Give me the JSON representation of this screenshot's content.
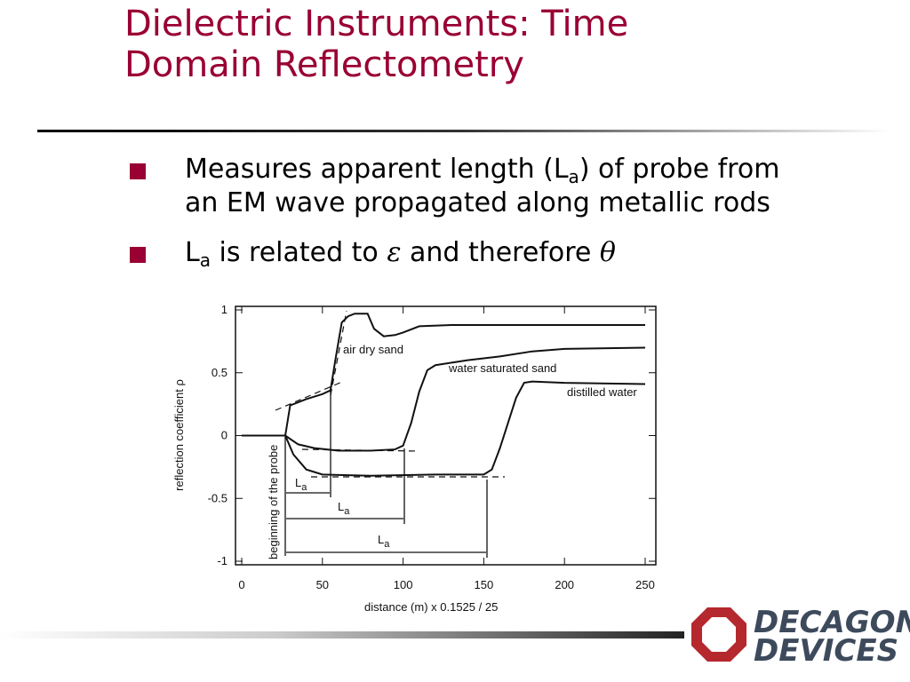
{
  "slide": {
    "title_lines": [
      "Dielectric Instruments: Time",
      "Domain Reflectometry"
    ],
    "bullets": [
      {
        "lines": [
          [
            "Measures apparent length (L",
            "a",
            ") of probe from"
          ],
          [
            "an EM wave propagated along metallic rods"
          ]
        ]
      },
      {
        "lines": [
          [
            "L",
            "a",
            " is related to ",
            "ε",
            " and therefore ",
            "θ"
          ]
        ]
      }
    ],
    "logo": [
      "DECAGON",
      "DEVICES"
    ]
  },
  "chart_data": {
    "type": "line",
    "xlabel": "distance (m)   x 0.1525 / 25",
    "ylabel": "reflection coefficient ρ",
    "xlim": [
      0,
      250
    ],
    "ylim": [
      -1,
      1
    ],
    "xticks": [
      0,
      50,
      100,
      150,
      200,
      250
    ],
    "yticks": [
      1,
      0.5,
      0,
      -0.5,
      -1
    ],
    "grid": false,
    "annotations": [
      "air dry sand",
      "water saturated sand",
      "distilled water",
      "beginning of the probe",
      "L",
      "a"
    ],
    "series": [
      {
        "name": "air dry sand",
        "color": "#111111",
        "x": [
          0,
          27,
          30,
          40,
          50,
          55,
          58,
          62,
          66,
          70,
          78,
          82,
          88,
          95,
          100,
          110,
          130,
          160,
          200,
          250
        ],
        "values": [
          0,
          0,
          0.24,
          0.29,
          0.33,
          0.36,
          0.6,
          0.9,
          0.95,
          0.97,
          0.97,
          0.85,
          0.79,
          0.8,
          0.82,
          0.87,
          0.88,
          0.88,
          0.88,
          0.88
        ]
      },
      {
        "name": "water saturated sand",
        "color": "#111111",
        "x": [
          0,
          27,
          35,
          45,
          60,
          80,
          95,
          100,
          105,
          110,
          115,
          120,
          140,
          160,
          180,
          200,
          250
        ],
        "values": [
          0,
          0,
          -0.07,
          -0.1,
          -0.12,
          -0.12,
          -0.11,
          -0.08,
          0.1,
          0.35,
          0.52,
          0.56,
          0.6,
          0.63,
          0.67,
          0.69,
          0.7
        ]
      },
      {
        "name": "distilled water",
        "color": "#111111",
        "x": [
          0,
          27,
          32,
          40,
          50,
          80,
          120,
          150,
          155,
          160,
          165,
          170,
          175,
          180,
          200,
          250
        ],
        "values": [
          0,
          0,
          -0.15,
          -0.27,
          -0.31,
          -0.32,
          -0.31,
          -0.31,
          -0.27,
          -0.1,
          0.1,
          0.3,
          0.42,
          0.43,
          0.42,
          0.41
        ]
      }
    ]
  }
}
